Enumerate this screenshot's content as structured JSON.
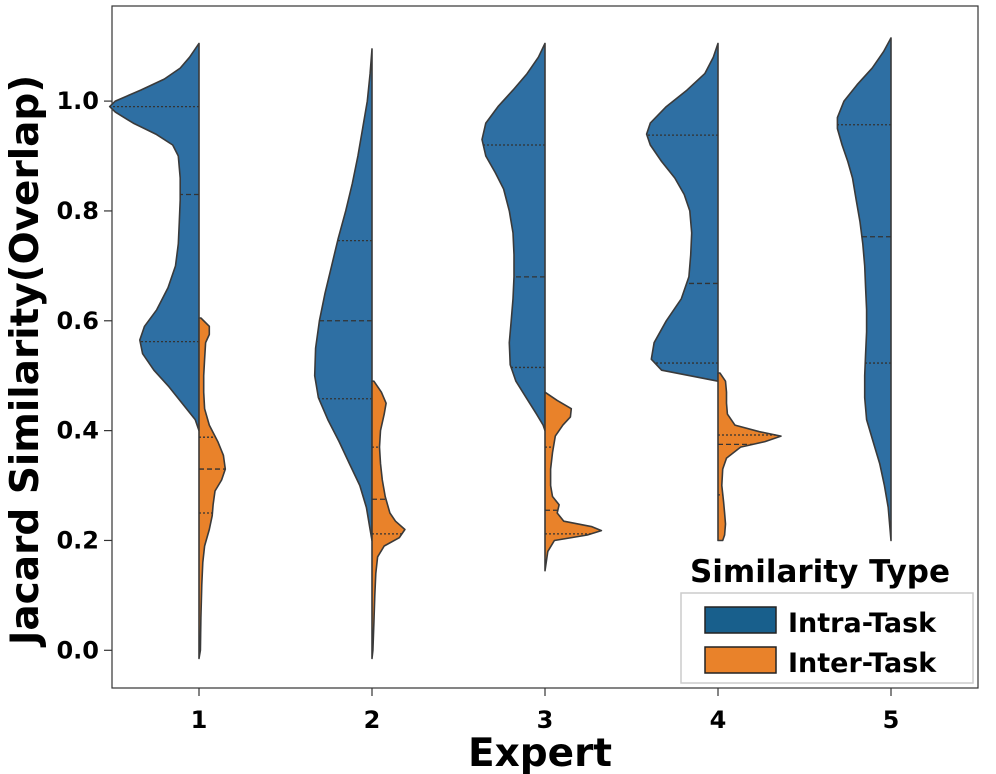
{
  "chart_data": {
    "type": "violin",
    "split": true,
    "xlabel": "Expert",
    "ylabel": "Jacard Similarity(Overlap)",
    "categories": [
      "1",
      "2",
      "3",
      "4",
      "5"
    ],
    "ylim": [
      -0.07,
      1.17
    ],
    "yticks": [
      "0.0",
      "0.2",
      "0.4",
      "0.6",
      "0.8",
      "1.0"
    ],
    "legend": {
      "title": "Similarity Type",
      "position": "lower-right",
      "entries": [
        "Intra-Task",
        "Inter-Task"
      ]
    },
    "series": [
      {
        "name": "Intra-Task",
        "color": "#2e6fa3",
        "side": "left",
        "groups": [
          {
            "expert": "1",
            "min": -0.02,
            "max": 1.105,
            "quartiles": [
              0.562,
              0.83,
              0.99
            ],
            "density": [
              [
                1.105,
                0
              ],
              [
                1.08,
                0.1
              ],
              [
                1.06,
                0.2
              ],
              [
                1.04,
                0.37
              ],
              [
                1.02,
                0.62
              ],
              [
                1.0,
                0.89
              ],
              [
                0.99,
                0.95
              ],
              [
                0.98,
                0.89
              ],
              [
                0.96,
                0.7
              ],
              [
                0.94,
                0.46
              ],
              [
                0.92,
                0.28
              ],
              [
                0.9,
                0.22
              ],
              [
                0.86,
                0.2
              ],
              [
                0.82,
                0.2
              ],
              [
                0.78,
                0.21
              ],
              [
                0.74,
                0.22
              ],
              [
                0.7,
                0.25
              ],
              [
                0.66,
                0.33
              ],
              [
                0.62,
                0.45
              ],
              [
                0.59,
                0.58
              ],
              [
                0.565,
                0.63
              ],
              [
                0.54,
                0.6
              ],
              [
                0.51,
                0.48
              ],
              [
                0.48,
                0.32
              ],
              [
                0.45,
                0.18
              ],
              [
                0.42,
                0.04
              ],
              [
                0.4,
                0
              ]
            ]
          },
          {
            "expert": "2",
            "min": -0.015,
            "max": 1.095,
            "quartiles": [
              0.458,
              0.6,
              0.746
            ],
            "density": [
              [
                1.095,
                0
              ],
              [
                1.05,
                0.02
              ],
              [
                1.0,
                0.05
              ],
              [
                0.95,
                0.1
              ],
              [
                0.9,
                0.15
              ],
              [
                0.85,
                0.21
              ],
              [
                0.8,
                0.28
              ],
              [
                0.75,
                0.36
              ],
              [
                0.7,
                0.43
              ],
              [
                0.65,
                0.5
              ],
              [
                0.6,
                0.56
              ],
              [
                0.55,
                0.6
              ],
              [
                0.5,
                0.61
              ],
              [
                0.46,
                0.57
              ],
              [
                0.42,
                0.47
              ],
              [
                0.38,
                0.35
              ],
              [
                0.34,
                0.24
              ],
              [
                0.3,
                0.13
              ],
              [
                0.26,
                0.06
              ],
              [
                0.22,
                0.02
              ],
              [
                0.2,
                0
              ]
            ]
          },
          {
            "expert": "3",
            "min": -0.015,
            "max": 1.105,
            "quartiles": [
              0.515,
              0.68,
              0.92
            ],
            "density": [
              [
                1.105,
                0
              ],
              [
                1.08,
                0.07
              ],
              [
                1.05,
                0.19
              ],
              [
                1.02,
                0.34
              ],
              [
                0.99,
                0.5
              ],
              [
                0.96,
                0.63
              ],
              [
                0.93,
                0.67
              ],
              [
                0.9,
                0.63
              ],
              [
                0.87,
                0.53
              ],
              [
                0.84,
                0.44
              ],
              [
                0.8,
                0.38
              ],
              [
                0.76,
                0.34
              ],
              [
                0.72,
                0.33
              ],
              [
                0.68,
                0.33
              ],
              [
                0.64,
                0.34
              ],
              [
                0.6,
                0.36
              ],
              [
                0.56,
                0.38
              ],
              [
                0.52,
                0.37
              ],
              [
                0.49,
                0.31
              ],
              [
                0.46,
                0.2
              ],
              [
                0.43,
                0.09
              ],
              [
                0.41,
                0.02
              ],
              [
                0.4,
                0
              ]
            ]
          },
          {
            "expert": "4",
            "min": 0.49,
            "max": 1.105,
            "quartiles": [
              0.523,
              0.668,
              0.938
            ],
            "density": [
              [
                1.105,
                0
              ],
              [
                1.08,
                0.05
              ],
              [
                1.05,
                0.14
              ],
              [
                1.02,
                0.33
              ],
              [
                0.99,
                0.55
              ],
              [
                0.96,
                0.72
              ],
              [
                0.94,
                0.76
              ],
              [
                0.92,
                0.72
              ],
              [
                0.89,
                0.6
              ],
              [
                0.86,
                0.46
              ],
              [
                0.83,
                0.36
              ],
              [
                0.8,
                0.3
              ],
              [
                0.76,
                0.28
              ],
              [
                0.72,
                0.29
              ],
              [
                0.68,
                0.31
              ],
              [
                0.64,
                0.39
              ],
              [
                0.6,
                0.55
              ],
              [
                0.56,
                0.68
              ],
              [
                0.53,
                0.71
              ],
              [
                0.51,
                0.6
              ],
              [
                0.49,
                0
              ]
            ]
          },
          {
            "expert": "5",
            "min": 0.2,
            "max": 1.115,
            "quartiles": [
              0.523,
              0.753,
              0.957
            ],
            "density": [
              [
                1.115,
                0
              ],
              [
                1.09,
                0.08
              ],
              [
                1.06,
                0.2
              ],
              [
                1.03,
                0.36
              ],
              [
                1.0,
                0.5
              ],
              [
                0.97,
                0.57
              ],
              [
                0.95,
                0.57
              ],
              [
                0.92,
                0.52
              ],
              [
                0.89,
                0.46
              ],
              [
                0.86,
                0.41
              ],
              [
                0.82,
                0.37
              ],
              [
                0.78,
                0.33
              ],
              [
                0.74,
                0.3
              ],
              [
                0.7,
                0.28
              ],
              [
                0.66,
                0.27
              ],
              [
                0.62,
                0.26
              ],
              [
                0.58,
                0.26
              ],
              [
                0.54,
                0.27
              ],
              [
                0.5,
                0.28
              ],
              [
                0.46,
                0.28
              ],
              [
                0.42,
                0.26
              ],
              [
                0.38,
                0.19
              ],
              [
                0.34,
                0.12
              ],
              [
                0.3,
                0.07
              ],
              [
                0.26,
                0.03
              ],
              [
                0.2,
                0
              ]
            ]
          }
        ]
      },
      {
        "name": "Inter-Task",
        "color": "#e9822a",
        "side": "right",
        "groups": [
          {
            "expert": "1",
            "min": -0.015,
            "max": 0.605,
            "quartiles": [
              0.25,
              0.33,
              0.388
            ],
            "density": [
              [
                0.605,
                0.02
              ],
              [
                0.59,
                0.11
              ],
              [
                0.575,
                0.11
              ],
              [
                0.56,
                0.07
              ],
              [
                0.53,
                0.06
              ],
              [
                0.5,
                0.05
              ],
              [
                0.47,
                0.05
              ],
              [
                0.44,
                0.06
              ],
              [
                0.41,
                0.11
              ],
              [
                0.38,
                0.2
              ],
              [
                0.355,
                0.26
              ],
              [
                0.33,
                0.28
              ],
              [
                0.31,
                0.24
              ],
              [
                0.29,
                0.17
              ],
              [
                0.265,
                0.15
              ],
              [
                0.245,
                0.14
              ],
              [
                0.22,
                0.11
              ],
              [
                0.19,
                0.06
              ],
              [
                0.16,
                0.04
              ],
              [
                0.12,
                0.03
              ],
              [
                0.06,
                0.02
              ],
              [
                0.0,
                0.015
              ],
              [
                -0.015,
                0
              ]
            ]
          },
          {
            "expert": "2",
            "min": -0.015,
            "max": 0.49,
            "quartiles": [
              0.212,
              0.275,
              0.37
            ],
            "density": [
              [
                0.49,
                0.02
              ],
              [
                0.47,
                0.1
              ],
              [
                0.45,
                0.15
              ],
              [
                0.43,
                0.13
              ],
              [
                0.4,
                0.09
              ],
              [
                0.37,
                0.08
              ],
              [
                0.34,
                0.09
              ],
              [
                0.31,
                0.11
              ],
              [
                0.28,
                0.14
              ],
              [
                0.25,
                0.19
              ],
              [
                0.235,
                0.25
              ],
              [
                0.22,
                0.35
              ],
              [
                0.205,
                0.29
              ],
              [
                0.19,
                0.13
              ],
              [
                0.17,
                0.06
              ],
              [
                0.14,
                0.04
              ],
              [
                0.1,
                0.03
              ],
              [
                0.05,
                0.02
              ],
              [
                0.0,
                0.01
              ],
              [
                -0.015,
                0
              ]
            ]
          },
          {
            "expert": "3",
            "min": 0.145,
            "max": 0.47,
            "quartiles": [
              0.212,
              0.255,
              0.37
            ],
            "density": [
              [
                0.47,
                0
              ],
              [
                0.455,
                0.13
              ],
              [
                0.44,
                0.28
              ],
              [
                0.425,
                0.27
              ],
              [
                0.41,
                0.19
              ],
              [
                0.39,
                0.11
              ],
              [
                0.36,
                0.08
              ],
              [
                0.33,
                0.06
              ],
              [
                0.3,
                0.06
              ],
              [
                0.28,
                0.08
              ],
              [
                0.265,
                0.15
              ],
              [
                0.25,
                0.13
              ],
              [
                0.235,
                0.2
              ],
              [
                0.225,
                0.5
              ],
              [
                0.218,
                0.6
              ],
              [
                0.21,
                0.45
              ],
              [
                0.2,
                0.1
              ],
              [
                0.18,
                0.03
              ],
              [
                0.145,
                0
              ]
            ]
          },
          {
            "expert": "4",
            "min": 0.2,
            "max": 0.505,
            "quartiles": [
              0.283,
              0.375,
              0.392
            ],
            "density": [
              [
                0.505,
                0.02
              ],
              [
                0.49,
                0.08
              ],
              [
                0.47,
                0.09
              ],
              [
                0.45,
                0.09
              ],
              [
                0.43,
                0.1
              ],
              [
                0.41,
                0.18
              ],
              [
                0.398,
                0.44
              ],
              [
                0.39,
                0.67
              ],
              [
                0.38,
                0.5
              ],
              [
                0.37,
                0.24
              ],
              [
                0.35,
                0.09
              ],
              [
                0.33,
                0.05
              ],
              [
                0.3,
                0.04
              ],
              [
                0.27,
                0.06
              ],
              [
                0.25,
                0.07
              ],
              [
                0.23,
                0.08
              ],
              [
                0.21,
                0.07
              ],
              [
                0.2,
                0.05
              ]
            ]
          }
        ]
      }
    ]
  }
}
